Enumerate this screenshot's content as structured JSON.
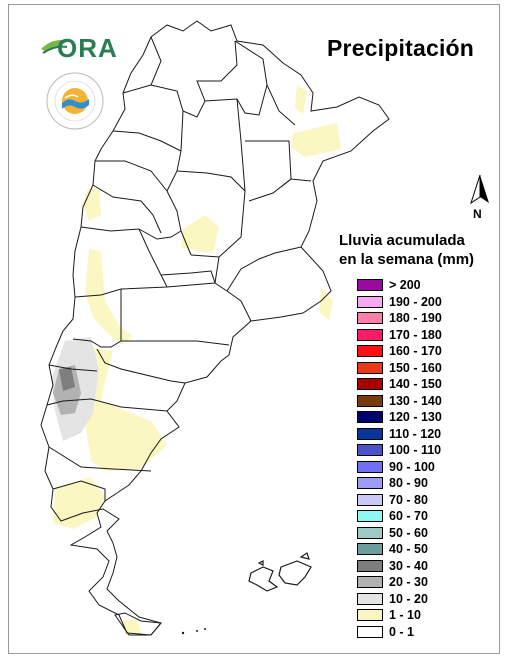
{
  "title": "Precipitación",
  "logo": {
    "text": "ORA"
  },
  "north_label": "N",
  "legend": {
    "title_line1": "Lluvia acumulada",
    "title_line2": "en la semana (mm)",
    "items": [
      {
        "label": "> 200",
        "color": "#9b0aa0"
      },
      {
        "label": "190 - 200",
        "color": "#f7a8f0"
      },
      {
        "label": "180 - 190",
        "color": "#ff7fa8"
      },
      {
        "label": "170 - 180",
        "color": "#ff1a6a"
      },
      {
        "label": "160 - 170",
        "color": "#ff1010"
      },
      {
        "label": "150 - 160",
        "color": "#e83a14"
      },
      {
        "label": "140 - 150",
        "color": "#a80000"
      },
      {
        "label": "130 - 140",
        "color": "#7a3b0c"
      },
      {
        "label": "120 - 130",
        "color": "#00006e"
      },
      {
        "label": "110 - 120",
        "color": "#08359a"
      },
      {
        "label": "100 - 110",
        "color": "#4a54c8"
      },
      {
        "label": "90 - 100",
        "color": "#7070f2"
      },
      {
        "label": "80 - 90",
        "color": "#9c9cf8"
      },
      {
        "label": "70 - 80",
        "color": "#cacaf8"
      },
      {
        "label": "60 - 70",
        "color": "#8ef8f4"
      },
      {
        "label": "50 - 60",
        "color": "#9ccac4"
      },
      {
        "label": "40 - 50",
        "color": "#6a9e9c"
      },
      {
        "label": "30 - 40",
        "color": "#7e7e7e"
      },
      {
        "label": "20 - 30",
        "color": "#b2b2b2"
      },
      {
        "label": "10 - 20",
        "color": "#e4e4e4"
      },
      {
        "label": "1 - 10",
        "color": "#fbf7c2"
      },
      {
        "label": "0 - 1",
        "color": "#ffffff"
      }
    ]
  },
  "colors": {
    "border": "#1a1a1a",
    "light_rain": "#fbf7c2",
    "dark_gray": "#7e7e7e",
    "mid_gray": "#b2b2b2",
    "light_gray": "#e4e4e4"
  }
}
